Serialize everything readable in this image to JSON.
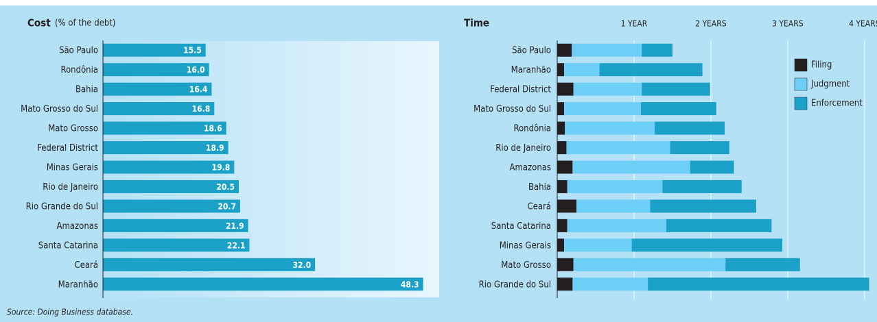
{
  "chart_data": [
    {
      "type": "bar",
      "orientation": "horizontal",
      "title": "Cost",
      "subtitle": "(% of the debt)",
      "categories": [
        "São Paulo",
        "Rondônia",
        "Bahia",
        "Mato Grosso do Sul",
        "Mato Grosso",
        "Federal District",
        "Minas Gerais",
        "Rio de Janeiro",
        "Rio Grande do Sul",
        "Amazonas",
        "Santa Catarina",
        "Ceará",
        "Maranhão"
      ],
      "values": [
        15.5,
        16.0,
        16.4,
        16.8,
        18.6,
        18.9,
        19.8,
        20.5,
        20.7,
        21.9,
        22.1,
        32.0,
        48.3
      ],
      "value_labels": [
        "15.5",
        "16.0",
        "16.4",
        "16.8",
        "18.6",
        "18.9",
        "19.8",
        "20.5",
        "20.7",
        "21.9",
        "22.1",
        "32.0",
        "48.3"
      ],
      "color": "#1ba1c8",
      "xlim": [
        0,
        50
      ]
    },
    {
      "type": "stacked_bar",
      "orientation": "horizontal",
      "title": "Time",
      "categories": [
        "São Paulo",
        "Maranhão",
        "Federal District",
        "Mato Grosso do Sul",
        "Rondônia",
        "Rio de Janeiro",
        "Amazonas",
        "Bahia",
        "Ceará",
        "Santa Catarina",
        "Minas Gerais",
        "Mato Grosso",
        "Rio Grande do Sul"
      ],
      "series": [
        {
          "name": "Filing",
          "color": "#231f20",
          "values": [
            0.19,
            0.09,
            0.21,
            0.09,
            0.1,
            0.12,
            0.2,
            0.13,
            0.25,
            0.13,
            0.09,
            0.21,
            0.2
          ]
        },
        {
          "name": "Judgment",
          "color": "#6dcff6",
          "values": [
            0.91,
            0.46,
            0.89,
            1.0,
            1.17,
            1.35,
            1.53,
            1.24,
            0.96,
            1.29,
            0.88,
            1.98,
            0.98
          ]
        },
        {
          "name": "Enforcement",
          "color": "#1ba1c8",
          "values": [
            0.4,
            1.34,
            0.89,
            0.98,
            0.91,
            0.77,
            0.57,
            1.03,
            1.38,
            1.37,
            1.96,
            0.97,
            2.88
          ]
        }
      ],
      "xlim": [
        0,
        4.1
      ],
      "xticks": [
        {
          "value": 1,
          "label": "1 YEAR"
        },
        {
          "value": 2,
          "label": "2 YEARS"
        },
        {
          "value": 3,
          "label": "3 YEARS"
        },
        {
          "value": 4,
          "label": "4 YEARS"
        }
      ],
      "grid": true,
      "legend": "upper right"
    }
  ],
  "source": "Source: Doing Business database."
}
